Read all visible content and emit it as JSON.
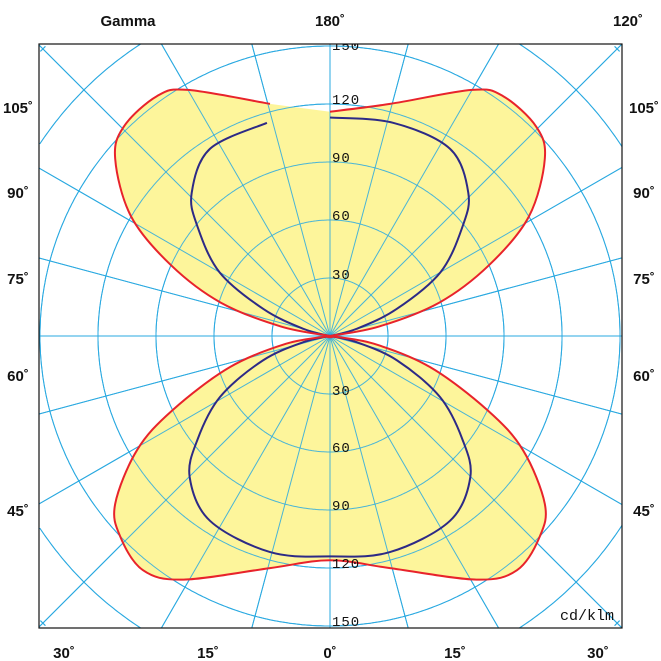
{
  "chart_data": {
    "type": "polar",
    "title": "Gamma",
    "unit_label": "cd/klm",
    "top_labels": {
      "left": "Gamma",
      "center": "180˚",
      "right": "120˚"
    },
    "side_labels": [
      "105˚",
      "90˚",
      "75˚",
      "60˚",
      "45˚"
    ],
    "bottom_labels": [
      "30˚",
      "15˚",
      "0˚",
      "15˚",
      "30˚"
    ],
    "radial_ticks_upper": [
      "150",
      "120",
      "90",
      "60",
      "30"
    ],
    "radial_ticks_lower": [
      "30",
      "60",
      "90",
      "120",
      "150"
    ],
    "radial_range": [
      0,
      150
    ],
    "ring_step": 30,
    "spoke_step_deg": 15,
    "colors": {
      "grid": "#2aa9e0",
      "fill": "#fdf59b",
      "series_red": "#e8232b",
      "series_blue": "#2d2a86",
      "frame": "#111111"
    },
    "series": [
      {
        "name": "red",
        "filled": true,
        "gamma": [
          0,
          14.5,
          31,
          38.6,
          46.4,
          52,
          59.4,
          64.8,
          72.8,
          80,
          90,
          101,
          107,
          114,
          121,
          129.5,
          135.4,
          144.2,
          150,
          165.5,
          180
        ],
        "intensity": [
          116,
          124,
          147,
          155,
          150,
          141,
          116,
          90,
          54,
          23,
          0,
          26,
          59,
          90,
          120,
          144,
          152,
          153,
          147,
          124,
          116
        ]
      },
      {
        "name": "blue",
        "filled": false,
        "gamma": [
          0,
          15.5,
          33,
          44.8,
          52,
          61,
          70,
          77,
          90,
          105,
          112,
          120,
          129.6,
          136,
          147.3,
          163.5,
          180
        ],
        "intensity": [
          114,
          116,
          114,
          103,
          87,
          65,
          37,
          14,
          0,
          14,
          37,
          66,
          89,
          103,
          115,
          115,
          113
        ]
      }
    ]
  }
}
